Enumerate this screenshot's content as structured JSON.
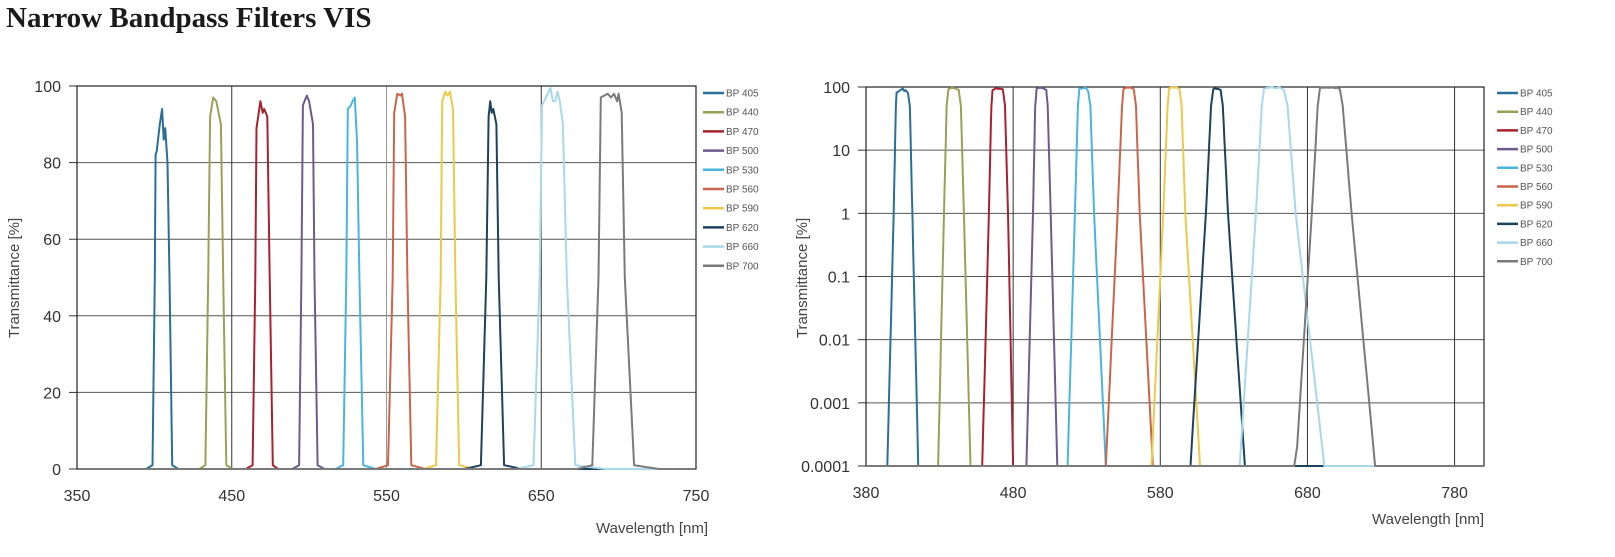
{
  "title": "Narrow Bandpass Filters VIS",
  "colors": {
    "BP 405": "#2a6f97",
    "BP 440": "#9aa055",
    "BP 470": "#a8212f",
    "BP 500": "#6e5a8c",
    "BP 530": "#4ab5dc",
    "BP 560": "#c9654a",
    "BP 590": "#ecc94b",
    "BP 620": "#1d425c",
    "BP 660": "#a8d8ea",
    "BP 700": "#7a7a7a"
  },
  "series": [
    {
      "name": "BP 405",
      "points": [
        [
          394.5,
          0.0001
        ],
        [
          398.8,
          1
        ],
        [
          400.3,
          50
        ],
        [
          400.8,
          82
        ],
        [
          401.5,
          83
        ],
        [
          403.5,
          90
        ],
        [
          405,
          94
        ],
        [
          406,
          86
        ],
        [
          407,
          89
        ],
        [
          408.5,
          80
        ],
        [
          409.8,
          50
        ],
        [
          411.5,
          1
        ],
        [
          415.5,
          0.0001
        ]
      ]
    },
    {
      "name": "BP 440",
      "points": [
        [
          429,
          0.0001
        ],
        [
          433,
          1
        ],
        [
          434.8,
          50
        ],
        [
          436,
          92
        ],
        [
          438,
          97
        ],
        [
          440,
          96
        ],
        [
          443,
          90
        ],
        [
          444.5,
          50
        ],
        [
          446.5,
          1
        ],
        [
          451,
          0.0001
        ]
      ]
    },
    {
      "name": "BP 470",
      "points": [
        [
          459,
          0.0001
        ],
        [
          463.5,
          1
        ],
        [
          465.2,
          50
        ],
        [
          466,
          89
        ],
        [
          468.5,
          96
        ],
        [
          470,
          93
        ],
        [
          471,
          94
        ],
        [
          473,
          92
        ],
        [
          474.5,
          50
        ],
        [
          476.5,
          1
        ],
        [
          480,
          0.0001
        ]
      ]
    },
    {
      "name": "BP 500",
      "points": [
        [
          489,
          0.0001
        ],
        [
          493.5,
          1
        ],
        [
          495,
          50
        ],
        [
          496,
          95
        ],
        [
          498.5,
          97.5
        ],
        [
          500,
          96
        ],
        [
          502.5,
          90
        ],
        [
          503.5,
          50
        ],
        [
          505.5,
          1
        ],
        [
          510,
          0.0001
        ]
      ]
    },
    {
      "name": "BP 530",
      "points": [
        [
          517,
          0.0001
        ],
        [
          522,
          1
        ],
        [
          524,
          50
        ],
        [
          525,
          94
        ],
        [
          527,
          95
        ],
        [
          528,
          96
        ],
        [
          529.5,
          97
        ],
        [
          531,
          85
        ],
        [
          532.5,
          50
        ],
        [
          535,
          1
        ],
        [
          543,
          0.0001
        ]
      ]
    },
    {
      "name": "BP 560",
      "points": [
        [
          543,
          0.0001
        ],
        [
          551,
          1
        ],
        [
          554,
          50
        ],
        [
          555,
          93
        ],
        [
          557,
          98
        ],
        [
          559,
          97.5
        ],
        [
          560,
          98
        ],
        [
          562,
          92
        ],
        [
          563.5,
          50
        ],
        [
          566,
          1
        ],
        [
          575,
          0.0001
        ]
      ]
    },
    {
      "name": "BP 590",
      "points": [
        [
          574,
          0.0001
        ],
        [
          582,
          1
        ],
        [
          585,
          50
        ],
        [
          586,
          96
        ],
        [
          588,
          98.5
        ],
        [
          589.5,
          97.5
        ],
        [
          591,
          98.5
        ],
        [
          593,
          94
        ],
        [
          594.5,
          50
        ],
        [
          597,
          1
        ],
        [
          607,
          0.0001
        ]
      ]
    },
    {
      "name": "BP 620",
      "points": [
        [
          600.5,
          0.0001
        ],
        [
          611,
          1
        ],
        [
          614.5,
          50
        ],
        [
          616,
          92
        ],
        [
          617,
          96
        ],
        [
          618,
          93
        ],
        [
          619,
          94
        ],
        [
          621,
          90
        ],
        [
          622.5,
          50
        ],
        [
          626,
          1
        ],
        [
          637.5,
          0.0001
        ]
      ]
    },
    {
      "name": "BP 660",
      "points": [
        [
          634,
          0.0001
        ],
        [
          645,
          1
        ],
        [
          649,
          50
        ],
        [
          650.5,
          95
        ],
        [
          653,
          97
        ],
        [
          656,
          99.5
        ],
        [
          657.5,
          96
        ],
        [
          659,
          96
        ],
        [
          660.5,
          98.5
        ],
        [
          662,
          96
        ],
        [
          664,
          90
        ],
        [
          666.5,
          50
        ],
        [
          672,
          1
        ],
        [
          691.5,
          0.0001
        ]
      ]
    },
    {
      "name": "BP 700",
      "points": [
        [
          671,
          0.0001
        ],
        [
          673,
          0.0002
        ],
        [
          683,
          1
        ],
        [
          687,
          50
        ],
        [
          688.5,
          97
        ],
        [
          693,
          98
        ],
        [
          695,
          97
        ],
        [
          697,
          98
        ],
        [
          699,
          96
        ],
        [
          700,
          98
        ],
        [
          702,
          93
        ],
        [
          704,
          50
        ],
        [
          710,
          1
        ],
        [
          726,
          0.0001
        ]
      ]
    }
  ],
  "chart_data": [
    {
      "type": "line",
      "xlabel": "Wavelength [nm]",
      "ylabel": "Transmittance [%]",
      "xlim": [
        350,
        750
      ],
      "ylim": [
        0,
        100
      ],
      "xticks": [
        "350",
        "450",
        "550",
        "650",
        "750"
      ],
      "yticks": [
        "0",
        "20",
        "40",
        "60",
        "80",
        "100"
      ],
      "yscale": "linear",
      "grid": true,
      "legend": "right",
      "series_ref": "series"
    },
    {
      "type": "line",
      "xlabel": "Wavelength [nm]",
      "ylabel": "Transmittance [%]",
      "xlim": [
        380,
        800
      ],
      "ylim": [
        0.0001,
        100
      ],
      "xticks": [
        "380",
        "480",
        "580",
        "680",
        "780"
      ],
      "yticks": [
        "0.0001",
        "0.001",
        "0.01",
        "0.1",
        "1",
        "10",
        "100"
      ],
      "yscale": "log",
      "grid": true,
      "legend": "right",
      "series_ref": "series"
    }
  ]
}
